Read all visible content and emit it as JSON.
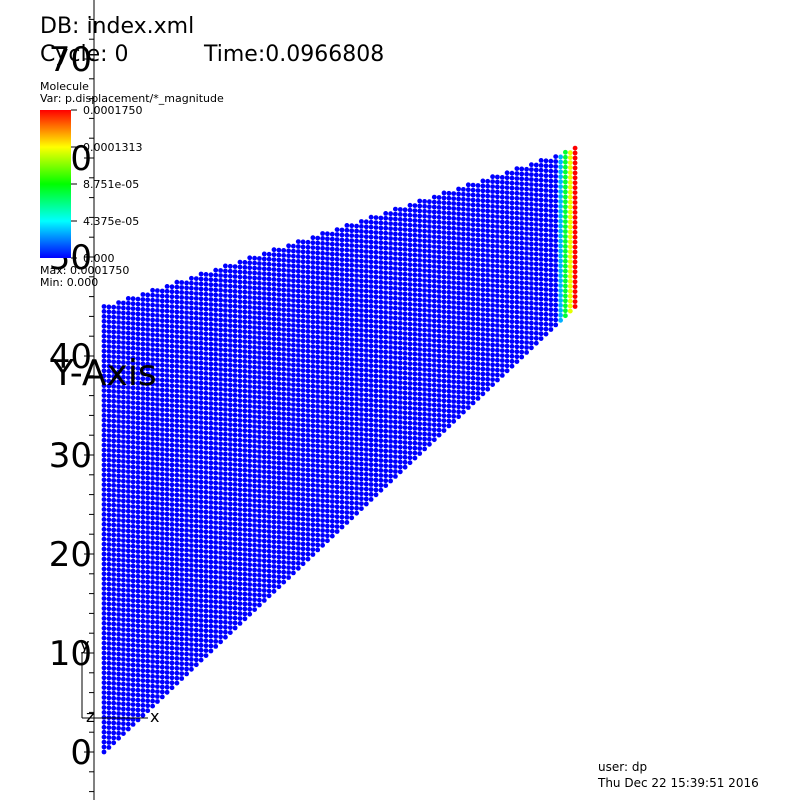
{
  "header": {
    "db": "DB: index.xml",
    "cycle": "Cycle: 0",
    "time": "Time:0.0966808"
  },
  "legend": {
    "plot_type": "Molecule",
    "variable": "Var: p.displacement/*_magnitude",
    "ticks": [
      "0.0001750",
      "0.0001313",
      "8.751e-05",
      "4.375e-05",
      "0.000"
    ],
    "max": "Max: 0.0001750",
    "min": "Min:  0.000",
    "colors": [
      "#ff0000",
      "#ffff00",
      "#00ff00",
      "#00ffff",
      "#0000ff"
    ]
  },
  "triad": {
    "y": "y",
    "x": "x",
    "z": "z"
  },
  "footer": {
    "user": "user: dp",
    "date": "Thu Dec 22 15:39:51 2016"
  },
  "chart_data": {
    "type": "scatter",
    "ylabel": "Y-Axis",
    "y_ticks": [
      0,
      10,
      20,
      30,
      40,
      50,
      60,
      70
    ],
    "y_tick_labels": [
      "0",
      "10",
      "20",
      "30",
      "40",
      "50",
      "60",
      "70"
    ],
    "ylim": [
      -4,
      78
    ],
    "xlim": [
      0,
      49
    ],
    "grid": false,
    "region": {
      "shape": "quadrilateral",
      "vertices": [
        [
          0,
          0
        ],
        [
          0,
          45
        ],
        [
          48.5,
          61
        ],
        [
          48.5,
          45
        ]
      ]
    },
    "particle_spacing": 0.5,
    "colorscale": {
      "min": 0.0,
      "max": 0.000175
    },
    "displacement": {
      "uniform_value": 0.0,
      "edge_band": {
        "x_from": 47.0,
        "x_to": 48.5,
        "value_from": 3e-05,
        "value_to": 0.000175
      }
    }
  }
}
